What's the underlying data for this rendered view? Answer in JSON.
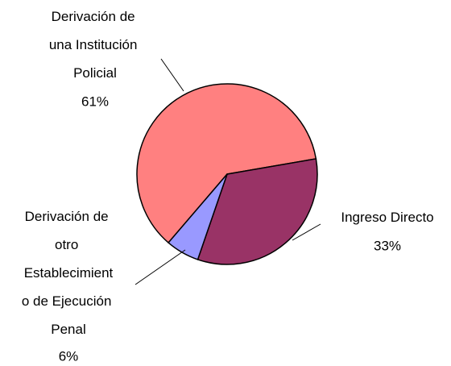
{
  "chart_data": {
    "type": "pie",
    "categories": [
      "Derivación de una Institución Policial",
      "Ingreso Directo",
      "Derivación de otro Establecimiento de Ejecución Penal"
    ],
    "values": [
      61,
      33,
      6
    ],
    "value_labels": [
      "61%",
      "33%",
      "6%"
    ],
    "colors": [
      "#ff8080",
      "#993366",
      "#9999ff"
    ]
  }
}
